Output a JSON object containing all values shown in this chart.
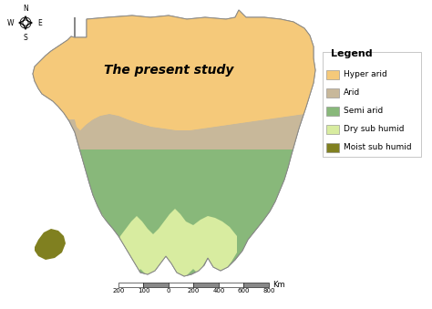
{
  "title": "The present study",
  "title_fontsize": 10,
  "title_fontweight": "bold",
  "background_color": "#ffffff",
  "legend_title": "Legend",
  "legend_items": [
    {
      "label": "Hyper arid",
      "color": "#F5C97A"
    },
    {
      "label": "Arid",
      "color": "#C8B89A"
    },
    {
      "label": "Semi arid",
      "color": "#88B87A"
    },
    {
      "label": "Dry sub humid",
      "color": "#D8ECA0"
    },
    {
      "label": "Moist sub humid",
      "color": "#808020"
    }
  ],
  "scalebar_label": "Km",
  "scalebar_ticks": [
    "200",
    "100",
    "0",
    "200",
    "400",
    "600",
    "800"
  ],
  "colors": {
    "hyper_arid": "#F5C97A",
    "arid": "#C8B89A",
    "semi_arid": "#88B87A",
    "dry_sub_humid": "#D8ECA0",
    "moist": "#808020"
  }
}
